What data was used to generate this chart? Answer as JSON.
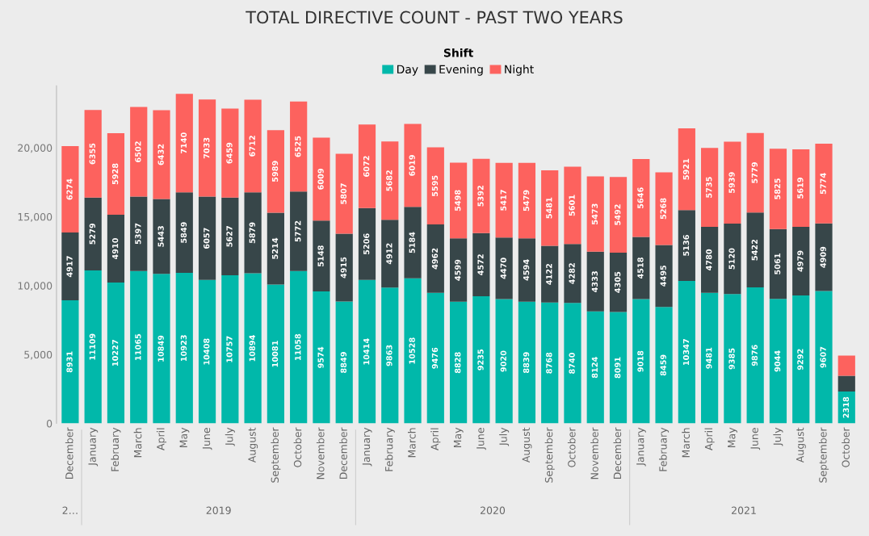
{
  "chart_data": {
    "type": "bar",
    "stacked": true,
    "title": "TOTAL DIRECTIVE COUNT - PAST TWO YEARS",
    "legend_title": "Shift",
    "legend": "top",
    "categories": [
      "December",
      "January",
      "February",
      "March",
      "April",
      "May",
      "June",
      "July",
      "August",
      "September",
      "October",
      "November",
      "December",
      "January",
      "February",
      "March",
      "April",
      "May",
      "June",
      "July",
      "August",
      "September",
      "October",
      "November",
      "December",
      "January",
      "February",
      "March",
      "April",
      "May",
      "June",
      "July",
      "August",
      "September",
      "October"
    ],
    "series": [
      {
        "name": "Day",
        "color": "#01b8aa",
        "values": [
          8931,
          11109,
          10227,
          11065,
          10849,
          10923,
          10408,
          10757,
          10894,
          10081,
          11058,
          9574,
          8849,
          10414,
          9863,
          10528,
          9476,
          8828,
          9235,
          9020,
          8839,
          8768,
          8740,
          8124,
          8091,
          9018,
          8459,
          10347,
          9481,
          9385,
          9876,
          9044,
          9292,
          9607,
          2318
        ],
        "value_labels": [
          "8931",
          "11109",
          "10227",
          "11065",
          "10849",
          "10923",
          "10408",
          "10757",
          "10894",
          "10081",
          "11058",
          "9574",
          "8849",
          "10414",
          "9863",
          "10528",
          "9476",
          "8828",
          "9235",
          "9020",
          "8839",
          "8768",
          "8740",
          "8124",
          "8091",
          "9018",
          "8459",
          "10347",
          "9481",
          "9385",
          "9876",
          "9044",
          "9292",
          "9607",
          "2318"
        ]
      },
      {
        "name": "Evening",
        "color": "#374649",
        "values": [
          4917,
          5279,
          4910,
          5397,
          5443,
          5849,
          6057,
          5627,
          5879,
          5214,
          5772,
          5148,
          4915,
          5206,
          4912,
          5184,
          4962,
          4599,
          4572,
          4470,
          4594,
          4122,
          4282,
          4333,
          4305,
          4518,
          4495,
          5136,
          4780,
          5120,
          5422,
          5061,
          4979,
          4909,
          1140
        ],
        "value_labels": [
          "4917",
          "5279",
          "4910",
          "5397",
          "5443",
          "5849",
          "6057",
          "5627",
          "5879",
          "5214",
          "5772",
          "5148",
          "4915",
          "5206",
          "4912",
          "5184",
          "4962",
          "4599",
          "4572",
          "4470",
          "4594",
          "4122",
          "4282",
          "4333",
          "4305",
          "4518",
          "4495",
          "5136",
          "4780",
          "5120",
          "5422",
          "5061",
          "4979",
          "4909",
          null
        ]
      },
      {
        "name": "Night",
        "color": "#fd625e",
        "values": [
          6274,
          6355,
          5928,
          6502,
          6432,
          7140,
          7033,
          6459,
          6712,
          5989,
          6525,
          6009,
          5807,
          6072,
          5682,
          6019,
          5595,
          5498,
          5392,
          5417,
          5479,
          5481,
          5601,
          5473,
          5492,
          5646,
          5268,
          5921,
          5735,
          5939,
          5779,
          5825,
          5619,
          5774,
          1470
        ],
        "value_labels": [
          "6274",
          "6355",
          "5928",
          "6502",
          "6432",
          "7140",
          "7033",
          "6459",
          "6712",
          "5989",
          "6525",
          "6009",
          "5807",
          "6072",
          "5682",
          "6019",
          "5595",
          "5498",
          "5392",
          "5417",
          "5479",
          "5481",
          "5601",
          "5473",
          "5492",
          "5646",
          "5268",
          "5921",
          "5735",
          "5939",
          "5779",
          "5825",
          "5619",
          "5774",
          null
        ]
      }
    ],
    "ylim": [
      0,
      24500
    ],
    "yticks": [
      0,
      {
        "value": 5000,
        "label": "5,000"
      },
      {
        "value": 10000,
        "label": "10,000"
      },
      {
        "value": 15000,
        "label": "15,000"
      },
      {
        "value": 20000,
        "label": "20,000"
      }
    ],
    "annotations": [
      "2…",
      "2019",
      "2020",
      "2021"
    ]
  }
}
